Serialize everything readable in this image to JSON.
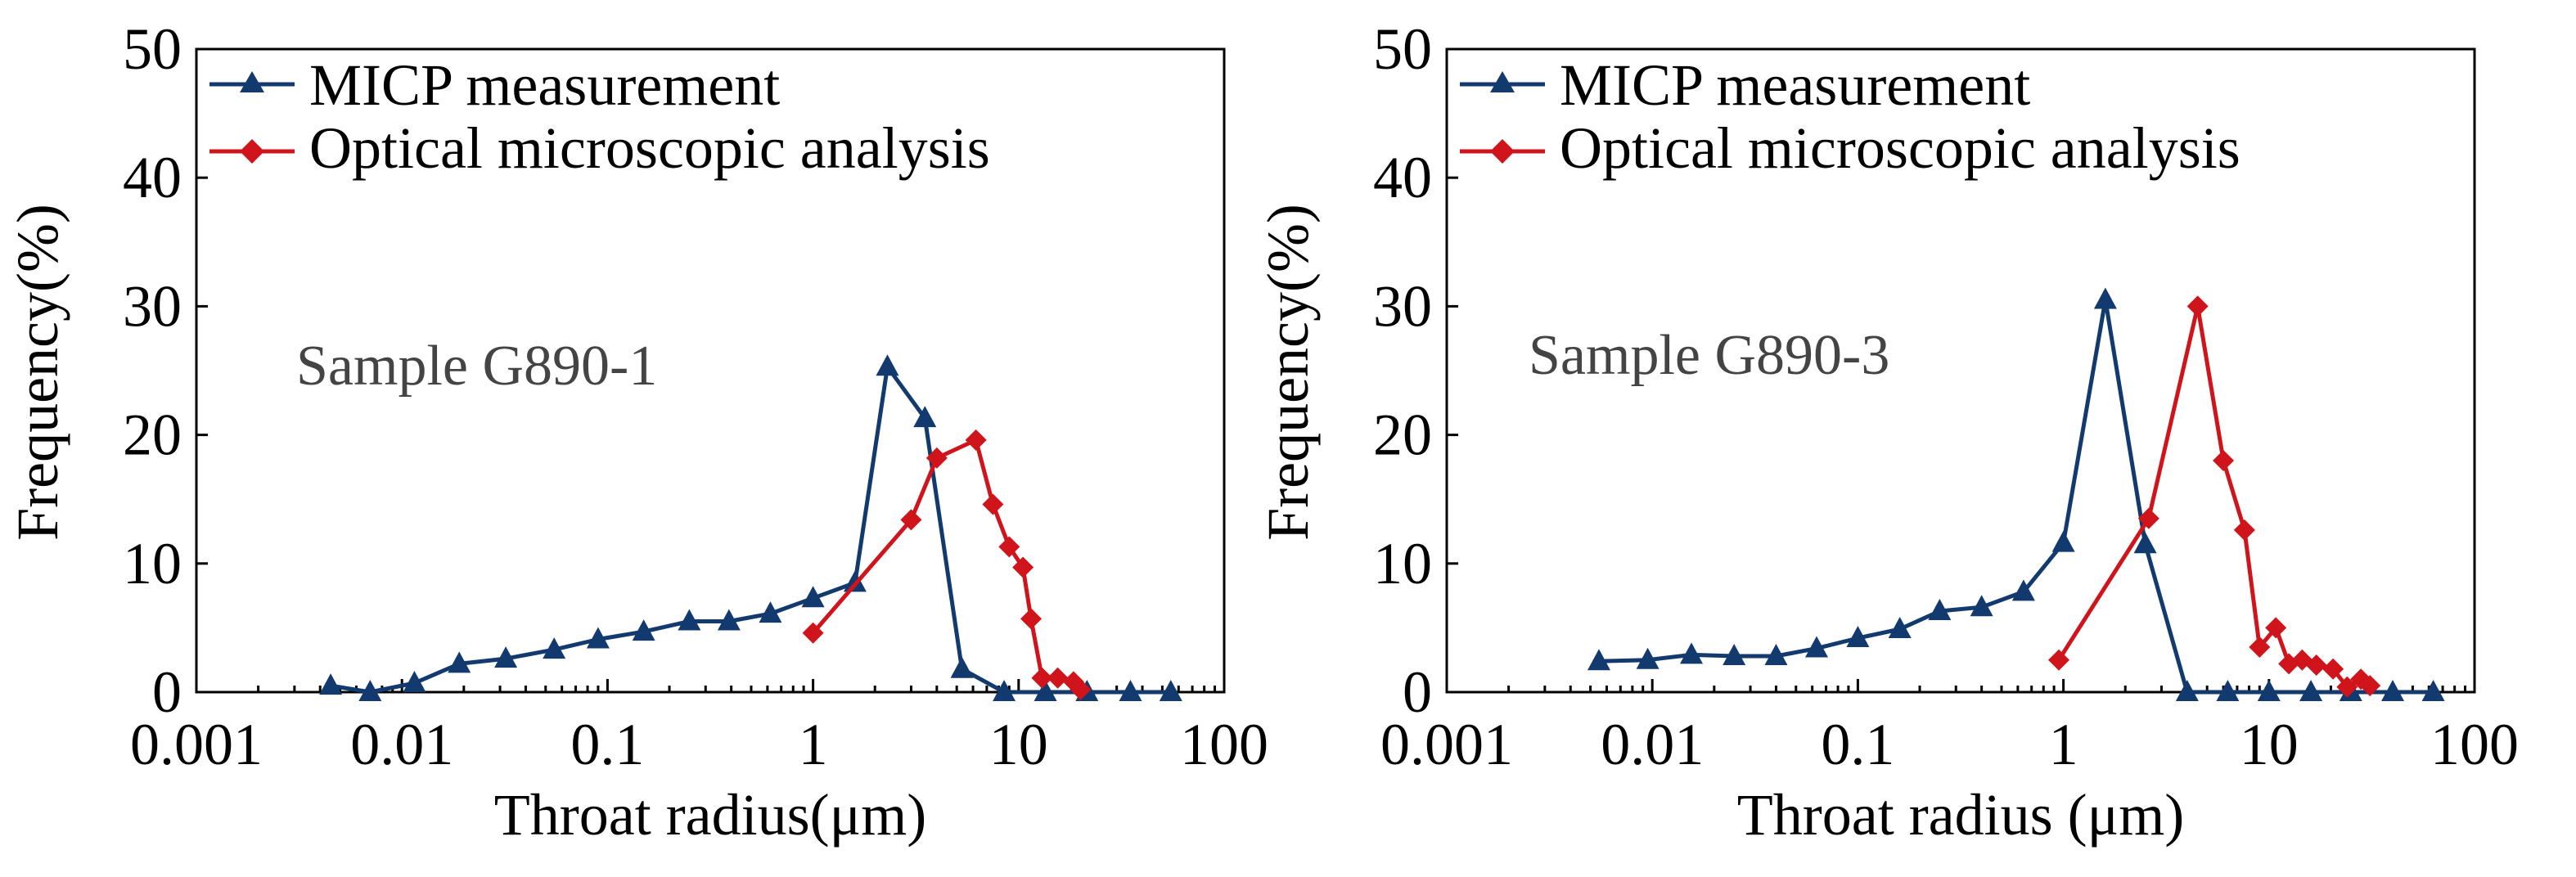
{
  "chart_data": [
    {
      "type": "line",
      "xscale": "log",
      "xlim": [
        0.001,
        100
      ],
      "ylim": [
        0,
        50
      ],
      "xticks": [
        0.001,
        0.01,
        0.1,
        1,
        10,
        100
      ],
      "xtick_labels": [
        "0.001",
        "0.01",
        "0.1",
        "1",
        "10",
        "100"
      ],
      "yticks": [
        0,
        10,
        20,
        30,
        40,
        50
      ],
      "ytick_labels": [
        "0",
        "10",
        "20",
        "30",
        "40",
        "50"
      ],
      "xlabel": "Throat radius(μm)",
      "ylabel": "Frequency(%)",
      "annotation": "Sample G890-1",
      "legend": "top-left",
      "series": [
        {
          "name": "MICP measurement",
          "color": "#123a6e",
          "marker": "triangle",
          "x": [
            0.0045,
            0.007,
            0.0115,
            0.019,
            0.032,
            0.055,
            0.09,
            0.15,
            0.25,
            0.39,
            0.62,
            1.0,
            1.6,
            2.3,
            3.5,
            5.3,
            8.5,
            13.5,
            21.5,
            35,
            55
          ],
          "y": [
            0.5,
            0.0,
            0.7,
            2.2,
            2.6,
            3.3,
            4.1,
            4.7,
            5.5,
            5.5,
            6.1,
            7.3,
            8.5,
            25.3,
            21.3,
            1.8,
            0,
            0,
            0,
            0,
            0
          ]
        },
        {
          "name": "Optical microscopic analysis",
          "color": "#d0141c",
          "marker": "diamond",
          "x": [
            1.0,
            3.0,
            4.0,
            6.2,
            7.5,
            9.0,
            10.5,
            11.5,
            13.0,
            15.5,
            18.5,
            20.0
          ],
          "y": [
            4.6,
            13.4,
            18.2,
            19.6,
            14.6,
            11.3,
            9.7,
            5.7,
            1.1,
            1.1,
            0.8,
            0.2
          ]
        }
      ]
    },
    {
      "type": "line",
      "xscale": "log",
      "xlim": [
        0.001,
        100
      ],
      "ylim": [
        0,
        50
      ],
      "xticks": [
        0.001,
        0.01,
        0.1,
        1,
        10,
        100
      ],
      "xtick_labels": [
        "0.001",
        "0.01",
        "0.1",
        "1",
        "10",
        "100"
      ],
      "yticks": [
        0,
        10,
        20,
        30,
        40,
        50
      ],
      "ytick_labels": [
        "0",
        "10",
        "20",
        "30",
        "40",
        "50"
      ],
      "xlabel": "Throat radius (μm)",
      "ylabel": "Frequency(%)",
      "annotation": "Sample G890-3",
      "legend": "top-left",
      "series": [
        {
          "name": "MICP measurement",
          "color": "#123a6e",
          "marker": "triangle",
          "x": [
            0.0055,
            0.0095,
            0.0155,
            0.025,
            0.04,
            0.063,
            0.1,
            0.16,
            0.25,
            0.4,
            0.64,
            1.0,
            1.6,
            2.5,
            4.0,
            6.3,
            10,
            16,
            25,
            40,
            63
          ],
          "y": [
            2.4,
            2.5,
            2.9,
            2.8,
            2.8,
            3.4,
            4.2,
            4.9,
            6.3,
            6.6,
            7.8,
            11.6,
            30.5,
            11.5,
            0,
            0,
            0,
            0,
            0,
            0,
            0
          ]
        },
        {
          "name": "Optical microscopic analysis",
          "color": "#d0141c",
          "marker": "diamond",
          "x": [
            0.95,
            2.6,
            4.5,
            6.0,
            7.6,
            9.0,
            10.8,
            12.5,
            14.5,
            17.0,
            20.5,
            24.0,
            28.0,
            31.0
          ],
          "y": [
            2.5,
            13.5,
            30.0,
            18.0,
            12.6,
            3.5,
            5.0,
            2.2,
            2.5,
            2.1,
            1.8,
            0.4,
            1.0,
            0.5
          ]
        }
      ]
    }
  ]
}
